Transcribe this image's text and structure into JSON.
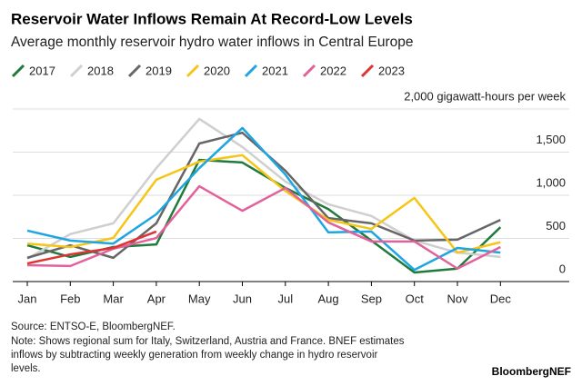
{
  "chart_data": {
    "type": "line",
    "title": "Reservoir Water Inflows Remain At Record-Low Levels",
    "subtitle": "Average monthly reservoir hydro water inflows in Central Europe",
    "categories": [
      "Jan",
      "Feb",
      "Mar",
      "Apr",
      "May",
      "Jun",
      "Jul",
      "Aug",
      "Sep",
      "Oct",
      "Nov",
      "Dec"
    ],
    "series": [
      {
        "name": "2017",
        "color": "#1e7b3c",
        "values": [
          420,
          285,
          400,
          430,
          1410,
          1380,
          1085,
          840,
          475,
          105,
          150,
          630
        ]
      },
      {
        "name": "2018",
        "color": "#cfcfcf",
        "values": [
          265,
          550,
          675,
          1315,
          1885,
          1560,
          1160,
          895,
          760,
          475,
          335,
          285
        ]
      },
      {
        "name": "2019",
        "color": "#666666",
        "values": [
          275,
          420,
          275,
          675,
          1600,
          1725,
          1285,
          735,
          675,
          475,
          485,
          715
        ]
      },
      {
        "name": "2020",
        "color": "#f5c518",
        "values": [
          440,
          400,
          505,
          1180,
          1390,
          1465,
          1050,
          715,
          610,
          970,
          335,
          455
        ]
      },
      {
        "name": "2021",
        "color": "#1ea5e2",
        "values": [
          590,
          475,
          440,
          780,
          1315,
          1780,
          1240,
          570,
          580,
          135,
          390,
          335
        ]
      },
      {
        "name": "2022",
        "color": "#e2619b",
        "values": [
          190,
          180,
          380,
          505,
          1105,
          820,
          1085,
          685,
          465,
          465,
          150,
          400
        ]
      },
      {
        "name": "2023",
        "color": "#e03232",
        "values": [
          210,
          315,
          390,
          580,
          null,
          null,
          null,
          null,
          null,
          null,
          null,
          null
        ]
      }
    ],
    "ylim": [
      0,
      2000
    ],
    "yticks": [
      0,
      500,
      {
        "value": 1000,
        "label": "1,000"
      },
      {
        "value": 1500,
        "label": "1,500"
      },
      {
        "value": 2000,
        "label": "2,000 gigawatt-hours per week"
      }
    ],
    "grid": true,
    "source": "Source: ENTSO-E, BloombergNEF.",
    "note": [
      "Note: Shows regional sum for Italy, Switzerland, Austria and France. BNEF estimates",
      "inflows by subtracting weekly generation from weekly change in hydro reservoir",
      "levels."
    ],
    "brand": "BloombergNEF"
  }
}
